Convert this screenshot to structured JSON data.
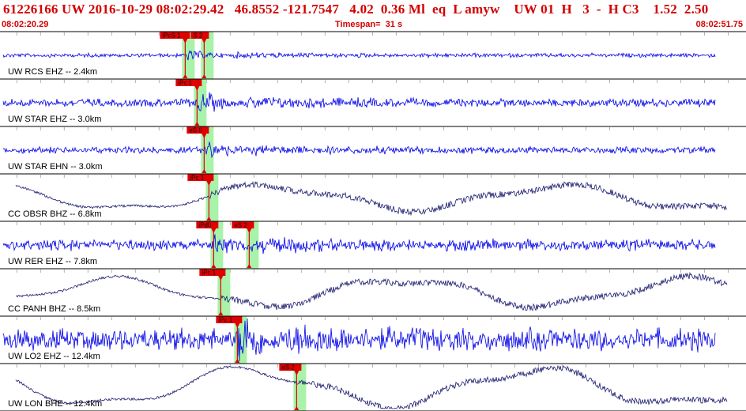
{
  "header": {
    "event_line": "61226166 UW 2016-10-29 08:02:29.42   46.8552 -121.7547   4.02  0.36 Ml  eq  L amyw    UW 01  H   3  -  H C3    1.52  2.50",
    "start_time": "08:02:20.29",
    "timespan": "Timespan=  31 s",
    "end_time": "08:02:51.75"
  },
  "colors": {
    "header_text": "#d40000",
    "trace_blue": "#0000e8",
    "trace_navy": "#1a1a6e",
    "pick_box": "#e00000",
    "highlight": "#9af09a",
    "grid": "#b0b0b0"
  },
  "channels": [
    {
      "label": "UW RCS EHZ -- 2.4km",
      "style": "hf",
      "amp": 3,
      "color": "blue",
      "picks": [
        {
          "label": "iPcS 1",
          "t": 0.3
        },
        {
          "label": "S 2",
          "t": 1.1
        }
      ]
    },
    {
      "label": "UW STAR EHZ -- 3.0km",
      "style": "hf",
      "amp": 6,
      "color": "blue",
      "picks": [
        {
          "label": "iPc 1",
          "t": 0.8
        }
      ]
    },
    {
      "label": "UW STAR EHN -- 3.0km",
      "style": "hf",
      "amp": 5,
      "color": "blue",
      "picks": [
        {
          "label": "eS 0",
          "t": 1.1
        }
      ]
    },
    {
      "label": "CC OBSR BHZ -- 6.8km",
      "style": "lf",
      "amp": 16,
      "color": "navy",
      "picks": [
        {
          "label": "iPc 1",
          "t": 1.3
        }
      ]
    },
    {
      "label": "UW RER EHZ -- 7.8km",
      "style": "hf",
      "amp": 8,
      "color": "blue",
      "picks": [
        {
          "label": "iPd0",
          "t": 1.5
        },
        {
          "label": "eS 2",
          "t": 3.0
        }
      ]
    },
    {
      "label": "CC PANH BHZ -- 8.5km",
      "style": "lf",
      "amp": 18,
      "color": "navy",
      "picks": [
        {
          "label": "iPc 1",
          "t": 1.8
        }
      ]
    },
    {
      "label": "UW LO2 EHZ -- 12.4km",
      "style": "hf",
      "amp": 16,
      "color": "blue",
      "picks": [
        {
          "label": "iPc 1",
          "t": 2.5
        }
      ]
    },
    {
      "label": "UW LON BHE -- 12.4km",
      "style": "lf",
      "amp": 24,
      "color": "navy",
      "picks": [
        {
          "label": "eS 2",
          "t": 5.0
        }
      ]
    }
  ]
}
